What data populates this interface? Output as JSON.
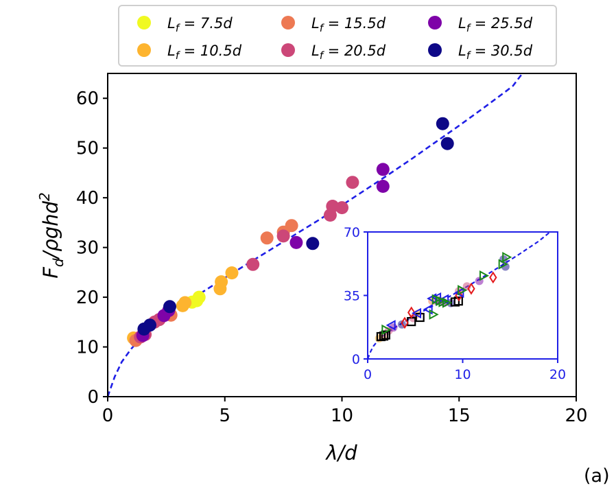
{
  "panel_label": "(a)",
  "colors": {
    "fit_line": "#1f1fe6",
    "inset_frame": "#1f1fe6",
    "inset_square": "#000000",
    "inset_diamond": "#e41a1c",
    "inset_left_triangle": "#1f1fe6",
    "inset_right_triangle": "#1a8a1a"
  },
  "chart_data": [
    {
      "type": "scatter",
      "title": "",
      "xlabel": "λ/d",
      "ylabel_main": "F",
      "ylabel_sub": "d",
      "ylabel_rest": "/ρghd",
      "ylabel_sup": "2",
      "xlim": [
        0,
        20
      ],
      "ylim": [
        0,
        65
      ],
      "xticks": [
        0,
        5,
        10,
        15,
        20
      ],
      "yticks": [
        0,
        10,
        20,
        30,
        40,
        50,
        60
      ],
      "grid": false,
      "legend_position": "top-outside",
      "fit_curve": {
        "style": "dashed",
        "points": [
          [
            0.0,
            0.0
          ],
          [
            0.3,
            4.0
          ],
          [
            0.6,
            7.0
          ],
          [
            1.0,
            9.6
          ],
          [
            1.5,
            12.2
          ],
          [
            2.0,
            14.2
          ],
          [
            2.5,
            16.0
          ],
          [
            3.0,
            17.7
          ],
          [
            4.0,
            20.9
          ],
          [
            5.0,
            23.9
          ],
          [
            6.0,
            26.8
          ],
          [
            7.0,
            29.7
          ],
          [
            8.0,
            32.6
          ],
          [
            9.0,
            35.5
          ],
          [
            10.0,
            38.5
          ],
          [
            11.0,
            41.6
          ],
          [
            12.0,
            44.7
          ],
          [
            13.0,
            47.9
          ],
          [
            14.0,
            51.2
          ],
          [
            15.0,
            54.5
          ],
          [
            16.0,
            57.9
          ],
          [
            17.0,
            61.4
          ],
          [
            17.3,
            62.5
          ],
          [
            17.7,
            65.0
          ]
        ]
      },
      "series": [
        {
          "name": "L_f = 7.5d",
          "label_main": "L",
          "label_sub": "f",
          "label_value": " = 7.5d",
          "color": "#f0f921",
          "points": [
            [
              3.8,
              19.3
            ],
            [
              3.9,
              20.0
            ],
            [
              3.6,
              19.0
            ]
          ]
        },
        {
          "name": "L_f = 10.5d",
          "label_main": "L",
          "label_sub": "f",
          "label_value": " = 10.5d",
          "color": "#fdb42f",
          "points": [
            [
              1.1,
              11.8
            ],
            [
              3.2,
              18.3
            ],
            [
              3.3,
              18.9
            ],
            [
              4.8,
              21.7
            ],
            [
              4.85,
              23.1
            ],
            [
              5.3,
              24.9
            ]
          ]
        },
        {
          "name": "L_f = 15.5d",
          "label_main": "L",
          "label_sub": "f",
          "label_value": " = 15.5d",
          "color": "#ed7953",
          "points": [
            [
              1.2,
              11.3
            ],
            [
              2.7,
              16.4
            ],
            [
              6.8,
              31.9
            ],
            [
              7.85,
              34.4
            ],
            [
              7.5,
              33.1
            ]
          ]
        },
        {
          "name": "L_f = 20.5d",
          "label_main": "L",
          "label_sub": "f",
          "label_value": " = 20.5d",
          "color": "#cc4778",
          "points": [
            [
              1.6,
              12.5
            ],
            [
              2.2,
              15.5
            ],
            [
              2.0,
              15.0
            ],
            [
              6.2,
              26.6
            ],
            [
              7.5,
              32.3
            ],
            [
              9.5,
              36.5
            ],
            [
              9.6,
              38.3
            ],
            [
              10.0,
              38.0
            ],
            [
              10.45,
              43.1
            ],
            [
              1.4,
              12.0
            ]
          ]
        },
        {
          "name": "L_f = 25.5d",
          "label_main": "L",
          "label_sub": "f",
          "label_value": " = 25.5d",
          "color": "#7e03a8",
          "points": [
            [
              1.5,
              12.3
            ],
            [
              2.4,
              16.3
            ],
            [
              2.6,
              17.3
            ],
            [
              8.05,
              31.0
            ],
            [
              11.75,
              45.7
            ],
            [
              11.75,
              42.3
            ]
          ]
        },
        {
          "name": "L_f = 30.5d",
          "label_main": "L",
          "label_sub": "f",
          "label_value": " = 30.5d",
          "color": "#0d0887",
          "points": [
            [
              1.55,
              13.6
            ],
            [
              1.8,
              14.4
            ],
            [
              2.65,
              18.1
            ],
            [
              8.75,
              30.8
            ],
            [
              14.3,
              54.9
            ],
            [
              14.5,
              50.9
            ]
          ]
        }
      ]
    },
    {
      "type": "scatter",
      "title": "",
      "xlim": [
        0,
        20
      ],
      "ylim": [
        0,
        70
      ],
      "xticks": [
        0,
        10,
        20
      ],
      "yticks": [
        0,
        35,
        70
      ],
      "grid": false,
      "placement": "inset-lower-right",
      "fit_curve": {
        "style": "dashed",
        "points": [
          [
            0.0,
            0.0
          ],
          [
            0.3,
            4.0
          ],
          [
            0.6,
            7.0
          ],
          [
            1.0,
            9.6
          ],
          [
            1.5,
            12.2
          ],
          [
            2.0,
            14.2
          ],
          [
            3.0,
            17.7
          ],
          [
            4.0,
            20.9
          ],
          [
            6.0,
            26.8
          ],
          [
            8.0,
            32.6
          ],
          [
            10.0,
            38.5
          ],
          [
            12.0,
            44.7
          ],
          [
            14.0,
            51.2
          ],
          [
            16.0,
            57.9
          ],
          [
            18.0,
            64.9
          ],
          [
            19.2,
            70.0
          ]
        ]
      },
      "series": [
        {
          "name": "circles",
          "marker": "circle",
          "alpha": 0.5,
          "points": [
            [
              1.2,
              11.3
            ],
            [
              1.6,
              12.5
            ],
            [
              2.2,
              15.5
            ],
            [
              2.7,
              17.3
            ],
            [
              3.6,
              19.0
            ],
            [
              4.8,
              22.5
            ],
            [
              5.3,
              24.9
            ],
            [
              6.8,
              31.9
            ],
            [
              7.5,
              32.3
            ],
            [
              8.05,
              31.0
            ],
            [
              8.75,
              30.8
            ],
            [
              9.6,
              37.4
            ],
            [
              10.45,
              40.0
            ],
            [
              11.75,
              43.0
            ],
            [
              14.3,
              54.9
            ],
            [
              14.5,
              50.9
            ]
          ]
        },
        {
          "name": "squares",
          "marker": "square",
          "points": [
            [
              1.4,
              12.3
            ],
            [
              1.7,
              12.6
            ],
            [
              1.9,
              13.2
            ],
            [
              4.6,
              20.6
            ],
            [
              5.5,
              22.9
            ],
            [
              9.2,
              31.4
            ],
            [
              9.55,
              31.9
            ]
          ]
        },
        {
          "name": "diamonds",
          "marker": "diamond",
          "points": [
            [
              3.9,
              19.9
            ],
            [
              4.6,
              25.6
            ],
            [
              9.6,
              35.0
            ],
            [
              10.9,
              38.7
            ],
            [
              13.2,
              44.9
            ]
          ]
        },
        {
          "name": "left-triangles",
          "marker": "triangle-left",
          "points": [
            [
              2.5,
              18.6
            ],
            [
              5.2,
              25.2
            ],
            [
              6.4,
              27.3
            ],
            [
              6.8,
              33.3
            ],
            [
              7.3,
              33.8
            ],
            [
              8.1,
              32.8
            ],
            [
              9.7,
              36.5
            ]
          ]
        },
        {
          "name": "right-triangles",
          "marker": "triangle-right",
          "points": [
            [
              1.9,
              16.1
            ],
            [
              6.9,
              24.5
            ],
            [
              7.2,
              32.8
            ],
            [
              7.6,
              32.0
            ],
            [
              8.3,
              31.0
            ],
            [
              9.9,
              37.9
            ],
            [
              12.2,
              45.9
            ],
            [
              14.2,
              52.2
            ],
            [
              14.6,
              56.1
            ],
            [
              7.9,
              31.4
            ]
          ]
        }
      ]
    }
  ]
}
